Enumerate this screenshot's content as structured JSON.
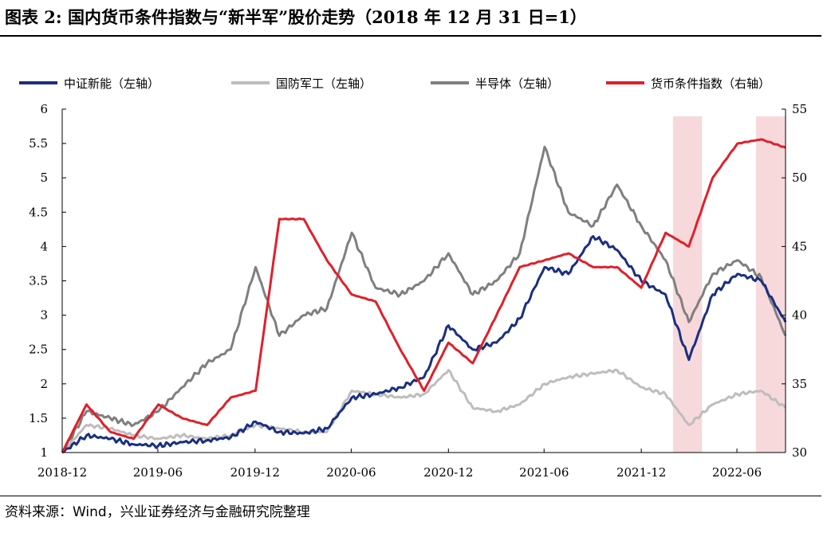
{
  "title": "图表 2:  国内货币条件指数与“新半军”股价走势（2018 年 12 月 31 日=1）",
  "source": "资料来源：Wind，兴业证券经济与金融研究院整理",
  "chart_data": {
    "type": "line",
    "x_ticks": [
      "2018-12",
      "2019-06",
      "2019-12",
      "2020-06",
      "2020-12",
      "2021-06",
      "2021-12",
      "2022-06"
    ],
    "x_range": [
      "2018-12-31",
      "2022-09-30"
    ],
    "y_left": {
      "ticks": [
        "1",
        "1.5",
        "2",
        "2.5",
        "3",
        "3.5",
        "4",
        "4.5",
        "5",
        "5.5",
        "6"
      ],
      "range": [
        1,
        6
      ]
    },
    "y_right": {
      "ticks": [
        "30",
        "35",
        "40",
        "45",
        "50",
        "55"
      ],
      "range": [
        30,
        55
      ]
    },
    "legend_position": "top",
    "grid": false,
    "shaded_periods": [
      [
        "2022-03-01",
        "2022-04-25"
      ],
      [
        "2022-08-05",
        "2022-09-30"
      ]
    ],
    "shade_color": "#f7d9dc",
    "series": [
      {
        "name": "中证新能（左轴）",
        "axis": "left",
        "color": "#1a2f80",
        "x": [
          "2018-12-31",
          "2019-02-15",
          "2019-04-01",
          "2019-05-15",
          "2019-07-01",
          "2019-08-15",
          "2019-10-01",
          "2019-11-15",
          "2020-01-01",
          "2020-02-15",
          "2020-04-01",
          "2020-05-15",
          "2020-07-01",
          "2020-08-15",
          "2020-10-01",
          "2020-11-15",
          "2020-12-31",
          "2021-02-15",
          "2021-04-01",
          "2021-05-15",
          "2021-07-01",
          "2021-08-15",
          "2021-10-01",
          "2021-11-15",
          "2021-12-31",
          "2022-02-15",
          "2022-03-31",
          "2022-05-15",
          "2022-07-01",
          "2022-08-15",
          "2022-09-30"
        ],
        "y": [
          1.0,
          1.25,
          1.2,
          1.12,
          1.1,
          1.15,
          1.18,
          1.22,
          1.45,
          1.3,
          1.28,
          1.35,
          1.8,
          1.85,
          1.95,
          2.1,
          2.85,
          2.5,
          2.6,
          2.95,
          3.7,
          3.6,
          4.15,
          3.95,
          3.5,
          3.3,
          2.35,
          3.3,
          3.6,
          3.5,
          2.9
        ]
      },
      {
        "name": "国防军工（左轴）",
        "axis": "left",
        "color": "#bdbdbd",
        "x": [
          "2018-12-31",
          "2019-02-15",
          "2019-04-01",
          "2019-05-15",
          "2019-07-01",
          "2019-08-15",
          "2019-10-01",
          "2019-11-15",
          "2020-01-01",
          "2020-02-15",
          "2020-04-01",
          "2020-05-15",
          "2020-07-01",
          "2020-08-15",
          "2020-10-01",
          "2020-11-15",
          "2020-12-31",
          "2021-02-15",
          "2021-04-01",
          "2021-05-15",
          "2021-07-01",
          "2021-08-15",
          "2021-10-01",
          "2021-11-15",
          "2021-12-31",
          "2022-02-15",
          "2022-03-31",
          "2022-05-15",
          "2022-07-01",
          "2022-08-15",
          "2022-09-30"
        ],
        "y": [
          1.0,
          1.4,
          1.35,
          1.25,
          1.2,
          1.25,
          1.2,
          1.25,
          1.4,
          1.35,
          1.3,
          1.3,
          1.9,
          1.85,
          1.8,
          1.85,
          2.2,
          1.65,
          1.6,
          1.7,
          2.0,
          2.1,
          2.15,
          2.2,
          1.95,
          1.85,
          1.4,
          1.7,
          1.85,
          1.9,
          1.65
        ]
      },
      {
        "name": "半导体（左轴）",
        "axis": "left",
        "color": "#7f7f7f",
        "x": [
          "2018-12-31",
          "2019-02-15",
          "2019-04-01",
          "2019-05-15",
          "2019-07-01",
          "2019-08-15",
          "2019-10-01",
          "2019-11-15",
          "2020-01-01",
          "2020-02-15",
          "2020-04-01",
          "2020-05-15",
          "2020-07-01",
          "2020-08-15",
          "2020-10-01",
          "2020-11-15",
          "2020-12-31",
          "2021-02-15",
          "2021-04-01",
          "2021-05-15",
          "2021-07-01",
          "2021-08-15",
          "2021-10-01",
          "2021-11-15",
          "2021-12-31",
          "2022-02-15",
          "2022-03-31",
          "2022-05-15",
          "2022-07-01",
          "2022-08-15",
          "2022-09-30"
        ],
        "y": [
          1.0,
          1.6,
          1.5,
          1.4,
          1.6,
          1.95,
          2.3,
          2.5,
          3.7,
          2.7,
          3.0,
          3.1,
          4.2,
          3.4,
          3.3,
          3.5,
          3.9,
          3.3,
          3.5,
          3.9,
          5.45,
          4.5,
          4.3,
          4.9,
          4.3,
          3.8,
          2.9,
          3.6,
          3.8,
          3.55,
          2.7
        ]
      },
      {
        "name": "货币条件指数（右轴）",
        "axis": "right",
        "color": "#e0202a",
        "x": [
          "2018-12-31",
          "2019-02-15",
          "2019-04-01",
          "2019-05-15",
          "2019-07-01",
          "2019-08-15",
          "2019-10-01",
          "2019-11-15",
          "2020-01-01",
          "2020-02-15",
          "2020-04-01",
          "2020-05-15",
          "2020-07-01",
          "2020-08-15",
          "2020-10-01",
          "2020-11-15",
          "2020-12-31",
          "2021-02-15",
          "2021-04-01",
          "2021-05-15",
          "2021-07-01",
          "2021-08-15",
          "2021-10-01",
          "2021-11-15",
          "2021-12-31",
          "2022-02-15",
          "2022-03-31",
          "2022-05-15",
          "2022-07-01",
          "2022-08-15",
          "2022-09-30"
        ],
        "y": [
          30,
          33.5,
          31.5,
          31,
          33.5,
          32.5,
          32,
          34,
          34.5,
          47,
          47,
          44,
          41.5,
          41,
          37.5,
          34.5,
          38,
          36.5,
          40,
          43.5,
          44,
          44.5,
          43.5,
          43.5,
          42,
          46,
          45,
          50,
          52.5,
          52.8,
          52.2
        ]
      }
    ]
  }
}
